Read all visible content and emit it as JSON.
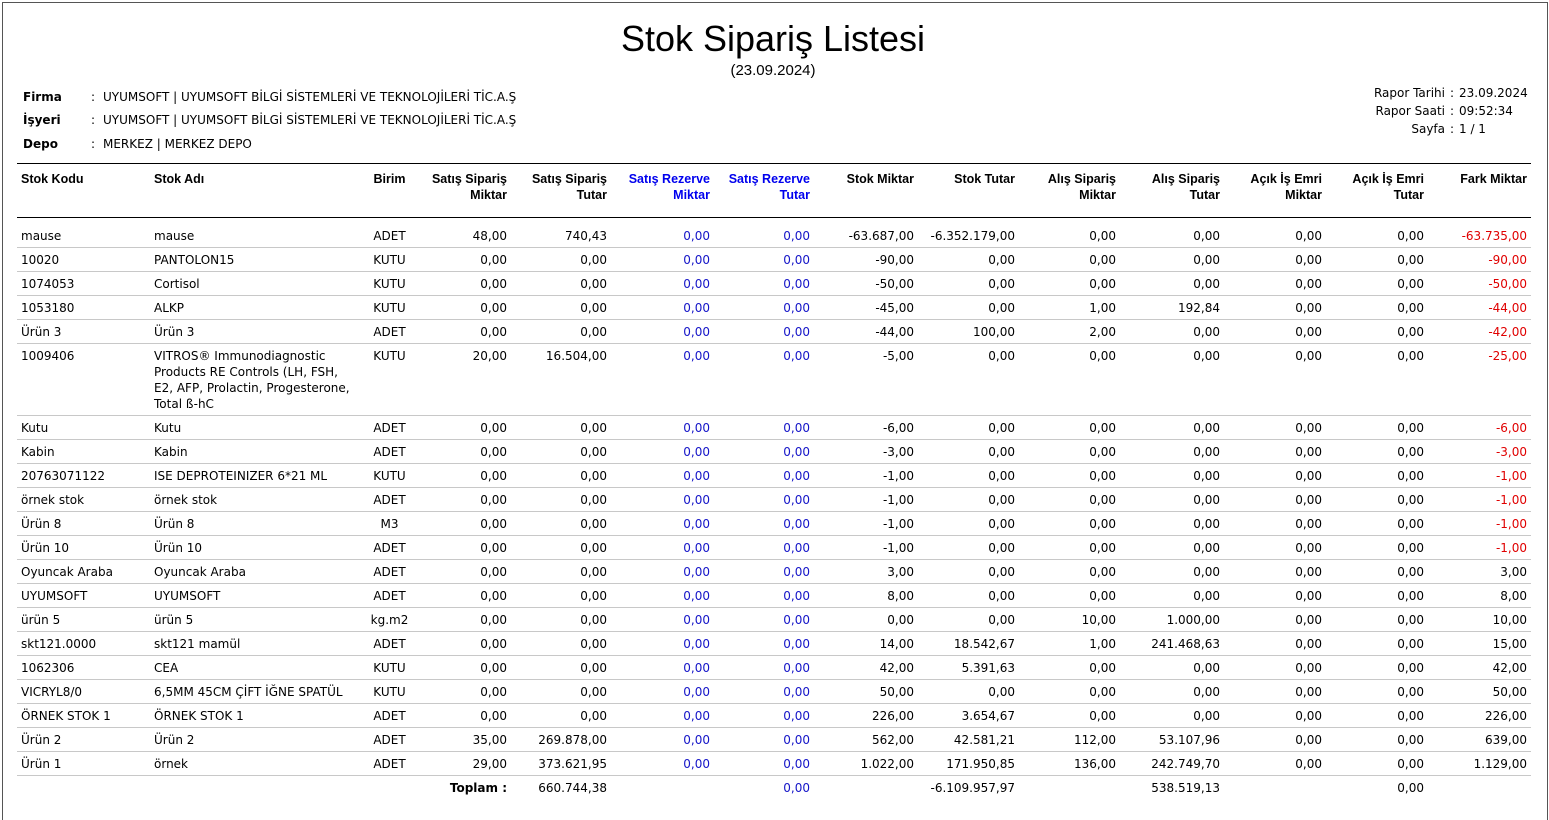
{
  "report": {
    "title": "Stok Sipariş Listesi",
    "date_subtitle": "(23.09.2024)"
  },
  "header": {
    "firma_label": "Firma",
    "firma_value": "UYUMSOFT | UYUMSOFT BİLGİ SİSTEMLERİ VE TEKNOLOJİLERİ TİC.A.Ş",
    "isyeri_label": "İşyeri",
    "isyeri_value": "UYUMSOFT | UYUMSOFT BİLGİ SİSTEMLERİ VE TEKNOLOJİLERİ TİC.A.Ş",
    "depo_label": "Depo",
    "depo_value": "MERKEZ | MERKEZ DEPO",
    "separator": ":"
  },
  "report_info": {
    "rapor_tarihi_label": "Rapor Tarihi",
    "rapor_tarihi_value": "23.09.2024",
    "rapor_saati_label": "Rapor Saati",
    "rapor_saati_value": "09:52:34",
    "sayfa_label": "Sayfa",
    "sayfa_value": "1 / 1"
  },
  "columns": {
    "stok_kodu": "Stok Kodu",
    "stok_adi": "Stok Adı",
    "birim": "Birim",
    "satis_siparis_miktar": [
      "Satış Sipariş",
      "Miktar"
    ],
    "satis_siparis_tutar": [
      "Satış Sipariş",
      "Tutar"
    ],
    "satis_rezerve_miktar": [
      "Satış Rezerve",
      "Miktar"
    ],
    "satis_rezerve_tutar": [
      "Satış Rezerve",
      "Tutar"
    ],
    "stok_miktar": "Stok Miktar",
    "stok_tutar": "Stok Tutar",
    "alis_siparis_miktar": [
      "Alış Sipariş",
      "Miktar"
    ],
    "alis_siparis_tutar": [
      "Alış Sipariş",
      "Tutar"
    ],
    "acik_is_emri_miktar": [
      "Açık İş Emri",
      "Miktar"
    ],
    "acik_is_emri_tutar": [
      "Açık İş Emri",
      "Tutar"
    ],
    "fark_miktar": "Fark Miktar"
  },
  "rows": [
    {
      "kod": "mause",
      "ad": "mause",
      "birim": "ADET",
      "ssm": "48,00",
      "sst": "740,43",
      "srm": "0,00",
      "srt": "0,00",
      "sm": "-63.687,00",
      "st": "-6.352.179,00",
      "asm": "0,00",
      "ast": "0,00",
      "aem": "0,00",
      "aet": "0,00",
      "fark": "-63.735,00"
    },
    {
      "kod": "10020",
      "ad": "PANTOLON15",
      "birim": "KUTU",
      "ssm": "0,00",
      "sst": "0,00",
      "srm": "0,00",
      "srt": "0,00",
      "sm": "-90,00",
      "st": "0,00",
      "asm": "0,00",
      "ast": "0,00",
      "aem": "0,00",
      "aet": "0,00",
      "fark": "-90,00"
    },
    {
      "kod": "1074053",
      "ad": "Cortisol",
      "birim": "KUTU",
      "ssm": "0,00",
      "sst": "0,00",
      "srm": "0,00",
      "srt": "0,00",
      "sm": "-50,00",
      "st": "0,00",
      "asm": "0,00",
      "ast": "0,00",
      "aem": "0,00",
      "aet": "0,00",
      "fark": "-50,00"
    },
    {
      "kod": "1053180",
      "ad": "ALKP",
      "birim": "KUTU",
      "ssm": "0,00",
      "sst": "0,00",
      "srm": "0,00",
      "srt": "0,00",
      "sm": "-45,00",
      "st": "0,00",
      "asm": "1,00",
      "ast": "192,84",
      "aem": "0,00",
      "aet": "0,00",
      "fark": "-44,00"
    },
    {
      "kod": "Ürün 3",
      "ad": "Ürün 3",
      "birim": "ADET",
      "ssm": "0,00",
      "sst": "0,00",
      "srm": "0,00",
      "srt": "0,00",
      "sm": "-44,00",
      "st": "100,00",
      "asm": "2,00",
      "ast": "0,00",
      "aem": "0,00",
      "aet": "0,00",
      "fark": "-42,00"
    },
    {
      "kod": "1009406",
      "ad": "VITROS® Immunodiagnostic Products RE Controls (LH, FSH, E2, AFP, Prolactin, Progesterone, Total ß-hC",
      "birim": "KUTU",
      "ssm": "20,00",
      "sst": "16.504,00",
      "srm": "0,00",
      "srt": "0,00",
      "sm": "-5,00",
      "st": "0,00",
      "asm": "0,00",
      "ast": "0,00",
      "aem": "0,00",
      "aet": "0,00",
      "fark": "-25,00"
    },
    {
      "kod": "Kutu",
      "ad": "Kutu",
      "birim": "ADET",
      "ssm": "0,00",
      "sst": "0,00",
      "srm": "0,00",
      "srt": "0,00",
      "sm": "-6,00",
      "st": "0,00",
      "asm": "0,00",
      "ast": "0,00",
      "aem": "0,00",
      "aet": "0,00",
      "fark": "-6,00"
    },
    {
      "kod": "Kabin",
      "ad": "Kabin",
      "birim": "ADET",
      "ssm": "0,00",
      "sst": "0,00",
      "srm": "0,00",
      "srt": "0,00",
      "sm": "-3,00",
      "st": "0,00",
      "asm": "0,00",
      "ast": "0,00",
      "aem": "0,00",
      "aet": "0,00",
      "fark": "-3,00"
    },
    {
      "kod": "20763071122",
      "ad": "ISE  DEPROTEINIZER 6*21 ML",
      "birim": "KUTU",
      "ssm": "0,00",
      "sst": "0,00",
      "srm": "0,00",
      "srt": "0,00",
      "sm": "-1,00",
      "st": "0,00",
      "asm": "0,00",
      "ast": "0,00",
      "aem": "0,00",
      "aet": "0,00",
      "fark": "-1,00"
    },
    {
      "kod": "örnek stok",
      "ad": "örnek stok",
      "birim": "ADET",
      "ssm": "0,00",
      "sst": "0,00",
      "srm": "0,00",
      "srt": "0,00",
      "sm": "-1,00",
      "st": "0,00",
      "asm": "0,00",
      "ast": "0,00",
      "aem": "0,00",
      "aet": "0,00",
      "fark": "-1,00"
    },
    {
      "kod": "Ürün 8",
      "ad": "Ürün 8",
      "birim": "M3",
      "ssm": "0,00",
      "sst": "0,00",
      "srm": "0,00",
      "srt": "0,00",
      "sm": "-1,00",
      "st": "0,00",
      "asm": "0,00",
      "ast": "0,00",
      "aem": "0,00",
      "aet": "0,00",
      "fark": "-1,00"
    },
    {
      "kod": "Ürün 10",
      "ad": "Ürün 10",
      "birim": "ADET",
      "ssm": "0,00",
      "sst": "0,00",
      "srm": "0,00",
      "srt": "0,00",
      "sm": "-1,00",
      "st": "0,00",
      "asm": "0,00",
      "ast": "0,00",
      "aem": "0,00",
      "aet": "0,00",
      "fark": "-1,00"
    },
    {
      "kod": "Oyuncak Araba",
      "ad": "Oyuncak Araba",
      "birim": "ADET",
      "ssm": "0,00",
      "sst": "0,00",
      "srm": "0,00",
      "srt": "0,00",
      "sm": "3,00",
      "st": "0,00",
      "asm": "0,00",
      "ast": "0,00",
      "aem": "0,00",
      "aet": "0,00",
      "fark": "3,00"
    },
    {
      "kod": "UYUMSOFT",
      "ad": "UYUMSOFT",
      "birim": "ADET",
      "ssm": "0,00",
      "sst": "0,00",
      "srm": "0,00",
      "srt": "0,00",
      "sm": "8,00",
      "st": "0,00",
      "asm": "0,00",
      "ast": "0,00",
      "aem": "0,00",
      "aet": "0,00",
      "fark": "8,00"
    },
    {
      "kod": "ürün 5",
      "ad": "ürün 5",
      "birim": "kg.m2",
      "ssm": "0,00",
      "sst": "0,00",
      "srm": "0,00",
      "srt": "0,00",
      "sm": "0,00",
      "st": "0,00",
      "asm": "10,00",
      "ast": "1.000,00",
      "aem": "0,00",
      "aet": "0,00",
      "fark": "10,00"
    },
    {
      "kod": "skt121.0000",
      "ad": "skt121 mamül",
      "birim": "ADET",
      "ssm": "0,00",
      "sst": "0,00",
      "srm": "0,00",
      "srt": "0,00",
      "sm": "14,00",
      "st": "18.542,67",
      "asm": "1,00",
      "ast": "241.468,63",
      "aem": "0,00",
      "aet": "0,00",
      "fark": "15,00"
    },
    {
      "kod": "1062306",
      "ad": "CEA",
      "birim": "KUTU",
      "ssm": "0,00",
      "sst": "0,00",
      "srm": "0,00",
      "srt": "0,00",
      "sm": "42,00",
      "st": "5.391,63",
      "asm": "0,00",
      "ast": "0,00",
      "aem": "0,00",
      "aet": "0,00",
      "fark": "42,00"
    },
    {
      "kod": "VICRYL8/0",
      "ad": "6,5MM 45CM ÇİFT İĞNE SPATÜL",
      "birim": "KUTU",
      "ssm": "0,00",
      "sst": "0,00",
      "srm": "0,00",
      "srt": "0,00",
      "sm": "50,00",
      "st": "0,00",
      "asm": "0,00",
      "ast": "0,00",
      "aem": "0,00",
      "aet": "0,00",
      "fark": "50,00"
    },
    {
      "kod": "ÖRNEK STOK 1",
      "ad": "ÖRNEK STOK 1",
      "birim": "ADET",
      "ssm": "0,00",
      "sst": "0,00",
      "srm": "0,00",
      "srt": "0,00",
      "sm": "226,00",
      "st": "3.654,67",
      "asm": "0,00",
      "ast": "0,00",
      "aem": "0,00",
      "aet": "0,00",
      "fark": "226,00"
    },
    {
      "kod": "Ürün 2",
      "ad": "Ürün 2",
      "birim": "ADET",
      "ssm": "35,00",
      "sst": "269.878,00",
      "srm": "0,00",
      "srt": "0,00",
      "sm": "562,00",
      "st": "42.581,21",
      "asm": "112,00",
      "ast": "53.107,96",
      "aem": "0,00",
      "aet": "0,00",
      "fark": "639,00"
    },
    {
      "kod": "Ürün 1",
      "ad": "örnek",
      "birim": "ADET",
      "ssm": "29,00",
      "sst": "373.621,95",
      "srm": "0,00",
      "srt": "0,00",
      "sm": "1.022,00",
      "st": "171.950,85",
      "asm": "136,00",
      "ast": "242.749,70",
      "aem": "0,00",
      "aet": "0,00",
      "fark": "1.129,00"
    }
  ],
  "totals": {
    "label": "Toplam :",
    "sst": "660.744,38",
    "srt": "0,00",
    "st": "-6.109.957,97",
    "ast": "538.519,13",
    "aet": "0,00"
  },
  "colors": {
    "blue_text": "#1515c8",
    "negative_red": "#e00000"
  }
}
